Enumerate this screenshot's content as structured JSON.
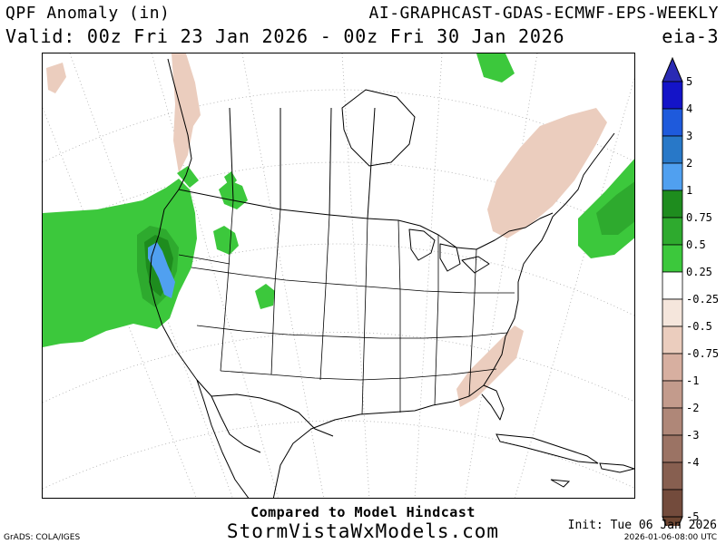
{
  "header": {
    "title": "QPF Anomaly (in)",
    "model": "AI-GRAPHCAST-GDAS-ECMWF-EPS-WEEKLY",
    "valid": "Valid: 00z Fri 23 Jan 2026 - 00z Fri 30 Jan 2026",
    "id": "eia-3"
  },
  "colorbar": {
    "levels": [
      {
        "label": "5",
        "color": "#1414c8"
      },
      {
        "label": "4",
        "color": "#1e5adc"
      },
      {
        "label": "3",
        "color": "#2878c8"
      },
      {
        "label": "2",
        "color": "#50a0f0"
      },
      {
        "label": "1",
        "color": "#1e8c1e"
      },
      {
        "label": "0.75",
        "color": "#2eaa2e"
      },
      {
        "label": "0.5",
        "color": "#3cc83c"
      },
      {
        "label": "0.25",
        "color": "#ffffff"
      },
      {
        "label": "-0.25",
        "color": "#f5e6dc"
      },
      {
        "label": "-0.5",
        "color": "#ebcdbe"
      },
      {
        "label": "-0.75",
        "color": "#d7afa0"
      },
      {
        "label": "-1",
        "color": "#c39b8c"
      },
      {
        "label": "-2",
        "color": "#af8778"
      },
      {
        "label": "-3",
        "color": "#9b7364"
      },
      {
        "label": "-4",
        "color": "#875f50"
      },
      {
        "label": "-5",
        "color": "#734b3c"
      }
    ],
    "top_cap_color": "#2a2ab4",
    "bottom_cap_color": "#6e4632"
  },
  "map_colors": {
    "wet_light": "#3cc83c",
    "wet_mid": "#2eaa2e",
    "wet_dark": "#1e8c1e",
    "wet_blue": "#50a0f0",
    "dry": "#ebcdbe"
  },
  "footer": {
    "compared": "Compared to Model Hindcast",
    "site": "StormVistaWxModels.com",
    "init": "Init: Tue 06 Jan 2026",
    "timestamp": "2026-01-06-08:00 UTC",
    "grads": "GrADS: COLA/IGES"
  }
}
